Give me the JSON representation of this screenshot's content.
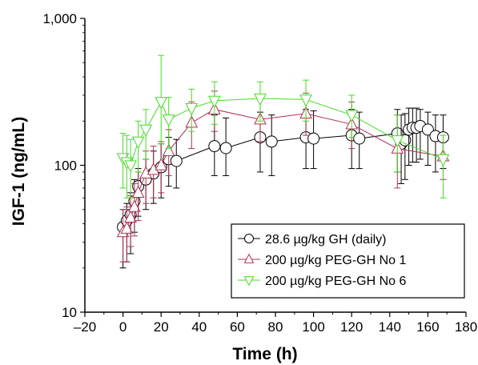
{
  "chart_data": {
    "type": "scatter",
    "xlabel": "Time (h)",
    "ylabel": "IGF-1 (ng/mL)",
    "xlim": [
      -20,
      180
    ],
    "ylim": [
      10,
      1000
    ],
    "yscale": "log",
    "xticks": [
      -20,
      0,
      20,
      40,
      60,
      80,
      100,
      120,
      140,
      160,
      180
    ],
    "xtick_labels": [
      "–20",
      "0",
      "20",
      "40",
      "60",
      "80",
      "100",
      "120",
      "140",
      "160",
      "180"
    ],
    "yticks": [
      10,
      100,
      1000
    ],
    "ytick_labels": [
      "10",
      "100",
      "1,000"
    ],
    "grid": false,
    "legend_position": "bottom-right",
    "series": [
      {
        "name": "28.6 µg/kg GH (daily)",
        "marker": "circle",
        "color": "#000000",
        "points": [
          {
            "x": 0,
            "y": 38,
            "lo": 20,
            "hi": 50
          },
          {
            "x": 2,
            "y": 42,
            "lo": 22,
            "hi": 55
          },
          {
            "x": 4,
            "y": 46,
            "lo": 25,
            "hi": 65
          },
          {
            "x": 6,
            "y": 57,
            "lo": 35,
            "hi": 80
          },
          {
            "x": 8,
            "y": 72,
            "lo": 45,
            "hi": 95
          },
          {
            "x": 12,
            "y": 80,
            "lo": 50,
            "hi": 110
          },
          {
            "x": 16,
            "y": 88,
            "lo": 55,
            "hi": 125
          },
          {
            "x": 20,
            "y": 97,
            "lo": 60,
            "hi": 140
          },
          {
            "x": 24,
            "y": 110,
            "lo": 72,
            "hi": 155
          },
          {
            "x": 28,
            "y": 107,
            "lo": 70,
            "hi": 150
          },
          {
            "x": 48,
            "y": 135,
            "lo": 85,
            "hi": 220
          },
          {
            "x": 54,
            "y": 131,
            "lo": 85,
            "hi": 210
          },
          {
            "x": 72,
            "y": 155,
            "lo": 90,
            "hi": 230
          },
          {
            "x": 78,
            "y": 145,
            "lo": 85,
            "hi": 220
          },
          {
            "x": 96,
            "y": 155,
            "lo": 95,
            "hi": 240
          },
          {
            "x": 100,
            "y": 152,
            "lo": 95,
            "hi": 235
          },
          {
            "x": 120,
            "y": 160,
            "lo": 95,
            "hi": 240
          },
          {
            "x": 124,
            "y": 152,
            "lo": 95,
            "hi": 230
          },
          {
            "x": 144,
            "y": 165,
            "lo": 90,
            "hi": 240
          },
          {
            "x": 146,
            "y": 140,
            "lo": 75,
            "hi": 220
          },
          {
            "x": 148,
            "y": 148,
            "lo": 80,
            "hi": 225
          },
          {
            "x": 150,
            "y": 175,
            "lo": 100,
            "hi": 245
          },
          {
            "x": 152,
            "y": 180,
            "lo": 105,
            "hi": 245
          },
          {
            "x": 154,
            "y": 180,
            "lo": 105,
            "hi": 245
          },
          {
            "x": 156,
            "y": 185,
            "lo": 110,
            "hi": 240
          },
          {
            "x": 160,
            "y": 175,
            "lo": 100,
            "hi": 230
          },
          {
            "x": 164,
            "y": 158,
            "lo": 90,
            "hi": 220
          },
          {
            "x": 168,
            "y": 155,
            "lo": 95,
            "hi": 220
          }
        ]
      },
      {
        "name": "200 µg/kg PEG-GH No 1",
        "marker": "triangle-up",
        "color": "#b03050",
        "points": [
          {
            "x": 0,
            "y": 35,
            "lo": 22,
            "hi": 50
          },
          {
            "x": 2,
            "y": 37,
            "lo": 22,
            "hi": 52
          },
          {
            "x": 4,
            "y": 44,
            "lo": 28,
            "hi": 62
          },
          {
            "x": 6,
            "y": 52,
            "lo": 33,
            "hi": 75
          },
          {
            "x": 8,
            "y": 65,
            "lo": 42,
            "hi": 90
          },
          {
            "x": 12,
            "y": 88,
            "lo": 55,
            "hi": 125
          },
          {
            "x": 16,
            "y": 93,
            "lo": 60,
            "hi": 135
          },
          {
            "x": 20,
            "y": 100,
            "lo": 65,
            "hi": 145
          },
          {
            "x": 24,
            "y": 125,
            "lo": 85,
            "hi": 175
          },
          {
            "x": 36,
            "y": 195,
            "lo": 130,
            "hi": 270
          },
          {
            "x": 48,
            "y": 240,
            "lo": 170,
            "hi": 320
          },
          {
            "x": 72,
            "y": 205,
            "lo": 145,
            "hi": 285
          },
          {
            "x": 96,
            "y": 225,
            "lo": 160,
            "hi": 310
          },
          {
            "x": 120,
            "y": 190,
            "lo": 130,
            "hi": 270
          },
          {
            "x": 144,
            "y": 130,
            "lo": 70,
            "hi": 220
          },
          {
            "x": 168,
            "y": 115,
            "lo": 80,
            "hi": 160
          }
        ]
      },
      {
        "name": "200 µg/kg PEG-GH No 6",
        "marker": "triangle-down",
        "color": "#44dd22",
        "points": [
          {
            "x": 0,
            "y": 112,
            "lo": 70,
            "hi": 165
          },
          {
            "x": 2,
            "y": 105,
            "lo": 60,
            "hi": 160
          },
          {
            "x": 4,
            "y": 100,
            "lo": 60,
            "hi": 150
          },
          {
            "x": 8,
            "y": 145,
            "lo": 90,
            "hi": 200
          },
          {
            "x": 12,
            "y": 175,
            "lo": 110,
            "hi": 240
          },
          {
            "x": 20,
            "y": 270,
            "lo": 140,
            "hi": 560
          },
          {
            "x": 24,
            "y": 205,
            "lo": 130,
            "hi": 290
          },
          {
            "x": 36,
            "y": 245,
            "lo": 170,
            "hi": 330
          },
          {
            "x": 48,
            "y": 275,
            "lo": 190,
            "hi": 370
          },
          {
            "x": 72,
            "y": 285,
            "lo": 200,
            "hi": 370
          },
          {
            "x": 96,
            "y": 280,
            "lo": 200,
            "hi": 380
          },
          {
            "x": 120,
            "y": 220,
            "lo": 155,
            "hi": 300
          },
          {
            "x": 144,
            "y": 148,
            "lo": 90,
            "hi": 220
          },
          {
            "x": 168,
            "y": 110,
            "lo": 60,
            "hi": 160
          }
        ]
      }
    ]
  }
}
